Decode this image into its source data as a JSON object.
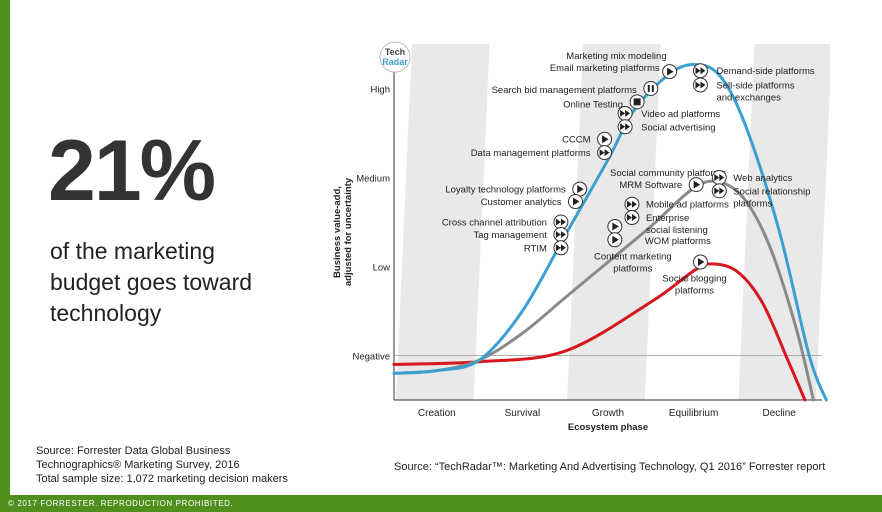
{
  "headline": {
    "stat": "21%",
    "text": "of the marketing budget goes toward technology"
  },
  "source_left": [
    "Source: Forrester Data Global Business",
    "Technographics® Marketing Survey, 2016",
    "Total sample size: 1,072 marketing decision makers"
  ],
  "source_right": "Source: “TechRadar™: Marketing And Advertising Technology, Q1 2016” Forrester report",
  "footer": "© 2017 FORRESTER. REPRODUCTION PROHIBITED.",
  "logo": {
    "line1": "Tech",
    "line2": "Radar"
  },
  "colors": {
    "accent_green": "#4f8f1e",
    "blue_curve": "#3b9fd1",
    "gray_curve": "#8a8a8a",
    "red_curve": "#d7161d",
    "band": "#e9e9e9"
  },
  "chart_data": {
    "type": "line",
    "xlabel": "Ecosystem phase",
    "ylabel": "Business value-add, adjusted for uncertainty",
    "categories": [
      "Creation",
      "Survival",
      "Growth",
      "Equilibrium",
      "Decline"
    ],
    "yticks": [
      "Negative",
      "Low",
      "Medium",
      "High"
    ],
    "ylim": [
      -0.5,
      3.5
    ],
    "series": [
      {
        "name": "high",
        "color": "#3b9fd1",
        "points": [
          [
            -0.5,
            -0.2
          ],
          [
            0,
            -0.17
          ],
          [
            0.5,
            -0.05
          ],
          [
            1,
            0.5
          ],
          [
            1.5,
            1.35
          ],
          [
            2,
            2.2
          ],
          [
            2.3,
            2.75
          ],
          [
            2.7,
            3.15
          ],
          [
            3,
            3.27
          ],
          [
            3.3,
            3.15
          ],
          [
            3.6,
            2.6
          ],
          [
            4,
            1.4
          ],
          [
            4.35,
            0.0
          ],
          [
            4.55,
            -0.5
          ]
        ]
      },
      {
        "name": "medium",
        "color": "#8a8a8a",
        "points": [
          [
            -0.5,
            -0.2
          ],
          [
            0,
            -0.17
          ],
          [
            0.5,
            -0.05
          ],
          [
            1,
            0.25
          ],
          [
            1.5,
            0.65
          ],
          [
            2,
            1.05
          ],
          [
            2.5,
            1.45
          ],
          [
            3,
            1.88
          ],
          [
            3.3,
            1.95
          ],
          [
            3.6,
            1.75
          ],
          [
            3.9,
            1.2
          ],
          [
            4.2,
            0.3
          ],
          [
            4.4,
            -0.5
          ]
        ]
      },
      {
        "name": "low",
        "color": "#d7161d",
        "points": [
          [
            -0.5,
            -0.1
          ],
          [
            0.5,
            -0.07
          ],
          [
            1.5,
            0.05
          ],
          [
            2.5,
            0.6
          ],
          [
            3,
            0.95
          ],
          [
            3.2,
            1.03
          ],
          [
            3.5,
            0.95
          ],
          [
            3.8,
            0.6
          ],
          [
            4.1,
            -0.05
          ],
          [
            4.3,
            -0.5
          ]
        ]
      }
    ],
    "points": [
      {
        "label": "Marketing mix modeling",
        "x": 2.72,
        "y": 3.19,
        "marker": "play",
        "label_side": "left",
        "label_dx": -3,
        "label_dy": -16
      },
      {
        "label": "Email marketing platforms",
        "x": 2.72,
        "y": 3.19,
        "marker": "",
        "label_side": "left",
        "label_dx": -10,
        "label_dy": -4
      },
      {
        "label": "Search bid management platforms",
        "x": 2.5,
        "y": 3.0,
        "marker": "pause",
        "label_side": "left",
        "label_dx": -14,
        "label_dy": 1
      },
      {
        "label": "Online Testing",
        "x": 2.34,
        "y": 2.85,
        "marker": "stop",
        "label_side": "left",
        "label_dx": -14,
        "label_dy": 2
      },
      {
        "label": "Demand-side platforms",
        "x": 3.08,
        "y": 3.2,
        "marker": "ff",
        "label_side": "right",
        "label_dx": 16,
        "label_dy": 0
      },
      {
        "label": "Sell-side platforms",
        "x": 3.08,
        "y": 3.04,
        "marker": "ff",
        "label_side": "right",
        "label_dx": 16,
        "label_dy": 0
      },
      {
        "label": "and exchanges",
        "x": 3.08,
        "y": 3.04,
        "marker": "",
        "label_side": "right",
        "label_dx": 16,
        "label_dy": 12
      },
      {
        "label": "Video ad platforms",
        "x": 2.2,
        "y": 2.72,
        "marker": "ff",
        "label_side": "right",
        "label_dx": 16,
        "label_dy": 0
      },
      {
        "label": "Social advertising",
        "x": 2.2,
        "y": 2.57,
        "marker": "ff",
        "label_side": "right",
        "label_dx": 16,
        "label_dy": 0
      },
      {
        "label": "CCCM",
        "x": 1.96,
        "y": 2.43,
        "marker": "play",
        "label_side": "left",
        "label_dx": -14,
        "label_dy": 0
      },
      {
        "label": "Data management platforms",
        "x": 1.96,
        "y": 2.28,
        "marker": "ff",
        "label_side": "left",
        "label_dx": -14,
        "label_dy": 0
      },
      {
        "label": "Social community platforms",
        "x": 3.03,
        "y": 1.92,
        "marker": "",
        "label_side": "left",
        "label_dx": 30,
        "label_dy": -12
      },
      {
        "label": "MRM Software",
        "x": 3.03,
        "y": 1.92,
        "marker": "play",
        "label_side": "left",
        "label_dx": -14,
        "label_dy": 0
      },
      {
        "label": "Web analytics",
        "x": 3.3,
        "y": 2.0,
        "marker": "ff",
        "label_side": "right",
        "label_dx": 14,
        "label_dy": 0
      },
      {
        "label": "Social relationship",
        "x": 3.3,
        "y": 1.85,
        "marker": "ff",
        "label_side": "right",
        "label_dx": 14,
        "label_dy": 0
      },
      {
        "label": "platforms",
        "x": 3.3,
        "y": 1.85,
        "marker": "",
        "label_side": "right",
        "label_dx": 14,
        "label_dy": 12
      },
      {
        "label": "Loyalty technology platforms",
        "x": 1.67,
        "y": 1.87,
        "marker": "play",
        "label_side": "left",
        "label_dx": -14,
        "label_dy": 0
      },
      {
        "label": "Customer analytics",
        "x": 1.62,
        "y": 1.73,
        "marker": "play",
        "label_side": "left",
        "label_dx": -14,
        "label_dy": 0
      },
      {
        "label": "Mobile ad platforms",
        "x": 2.28,
        "y": 1.7,
        "marker": "ff",
        "label_side": "right",
        "label_dx": 14,
        "label_dy": 0
      },
      {
        "label": "Enterprise",
        "x": 2.28,
        "y": 1.55,
        "marker": "ff",
        "label_side": "right",
        "label_dx": 14,
        "label_dy": 0
      },
      {
        "label": "social listening",
        "x": 2.28,
        "y": 1.55,
        "marker": "",
        "label_side": "right",
        "label_dx": 14,
        "label_dy": 12
      },
      {
        "label": "Cross channel attribution",
        "x": 1.45,
        "y": 1.5,
        "marker": "ff",
        "label_side": "left",
        "label_dx": -14,
        "label_dy": 0
      },
      {
        "label": "Tag management",
        "x": 1.45,
        "y": 1.36,
        "marker": "ff",
        "label_side": "left",
        "label_dx": -14,
        "label_dy": 0
      },
      {
        "label": "RTIM",
        "x": 1.45,
        "y": 1.21,
        "marker": "ff",
        "label_side": "left",
        "label_dx": -14,
        "label_dy": 0
      },
      {
        "label": "WOM platforms",
        "x": 2.08,
        "y": 1.45,
        "marker": "play",
        "label_side": "right",
        "label_dx": 30,
        "label_dy": 14
      },
      {
        "label": "Content marketing",
        "x": 2.08,
        "y": 1.3,
        "marker": "play",
        "label_side": "center",
        "label_dx": 18,
        "label_dy": 16
      },
      {
        "label": "platforms",
        "x": 2.08,
        "y": 1.3,
        "marker": "",
        "label_side": "center",
        "label_dx": 18,
        "label_dy": 28
      },
      {
        "label": "Social blogging",
        "x": 3.08,
        "y": 1.05,
        "marker": "play",
        "label_side": "center",
        "label_dx": -6,
        "label_dy": 16
      },
      {
        "label": "platforms",
        "x": 3.08,
        "y": 1.05,
        "marker": "",
        "label_side": "center",
        "label_dx": -6,
        "label_dy": 28
      }
    ]
  }
}
